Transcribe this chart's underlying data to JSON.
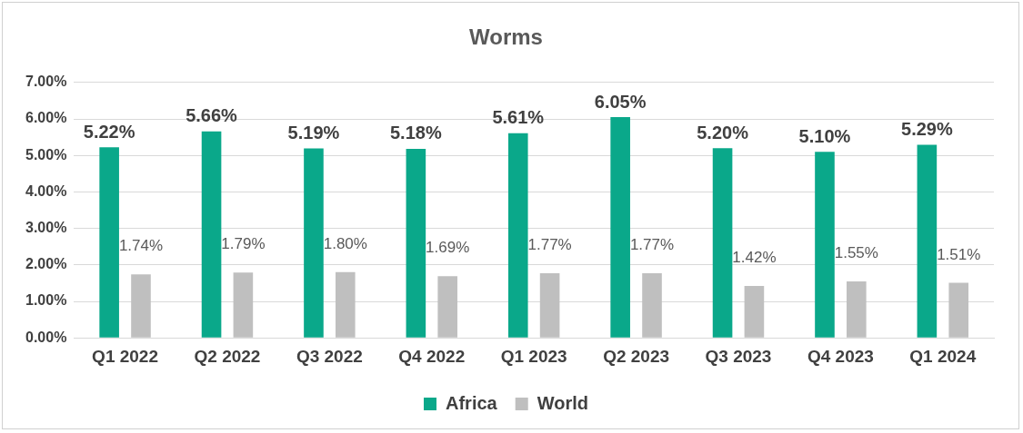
{
  "chart_data": {
    "type": "bar",
    "title": "Worms",
    "categories": [
      "Q1 2022",
      "Q2 2022",
      "Q3 2022",
      "Q4 2022",
      "Q1 2023",
      "Q2 2023",
      "Q3 2023",
      "Q4 2023",
      "Q1 2024"
    ],
    "series": [
      {
        "name": "Africa",
        "color": "#0aa88a",
        "values": [
          5.22,
          5.66,
          5.19,
          5.18,
          5.61,
          6.05,
          5.2,
          5.1,
          5.29
        ],
        "value_labels": [
          "5.22%",
          "5.66%",
          "5.19%",
          "5.18%",
          "5.61%",
          "6.05%",
          "5.20%",
          "5.10%",
          "5.29%"
        ]
      },
      {
        "name": "World",
        "color": "#bfbfbf",
        "values": [
          1.74,
          1.79,
          1.8,
          1.69,
          1.77,
          1.77,
          1.42,
          1.55,
          1.51
        ],
        "value_labels": [
          "1.74%",
          "1.79%",
          "1.80%",
          "1.69%",
          "1.77%",
          "1.77%",
          "1.42%",
          "1.55%",
          "1.51%"
        ]
      }
    ],
    "ylim": [
      0,
      7
    ],
    "yticks": [
      {
        "value": 0,
        "label": "0.00%"
      },
      {
        "value": 1,
        "label": "1.00%"
      },
      {
        "value": 2,
        "label": "2.00%"
      },
      {
        "value": 3,
        "label": "3.00%"
      },
      {
        "value": 4,
        "label": "4.00%"
      },
      {
        "value": 5,
        "label": "5.00%"
      },
      {
        "value": 6,
        "label": "6.00%"
      },
      {
        "value": 7,
        "label": "7.00%"
      }
    ],
    "grid": "y",
    "legend": "bottom"
  }
}
